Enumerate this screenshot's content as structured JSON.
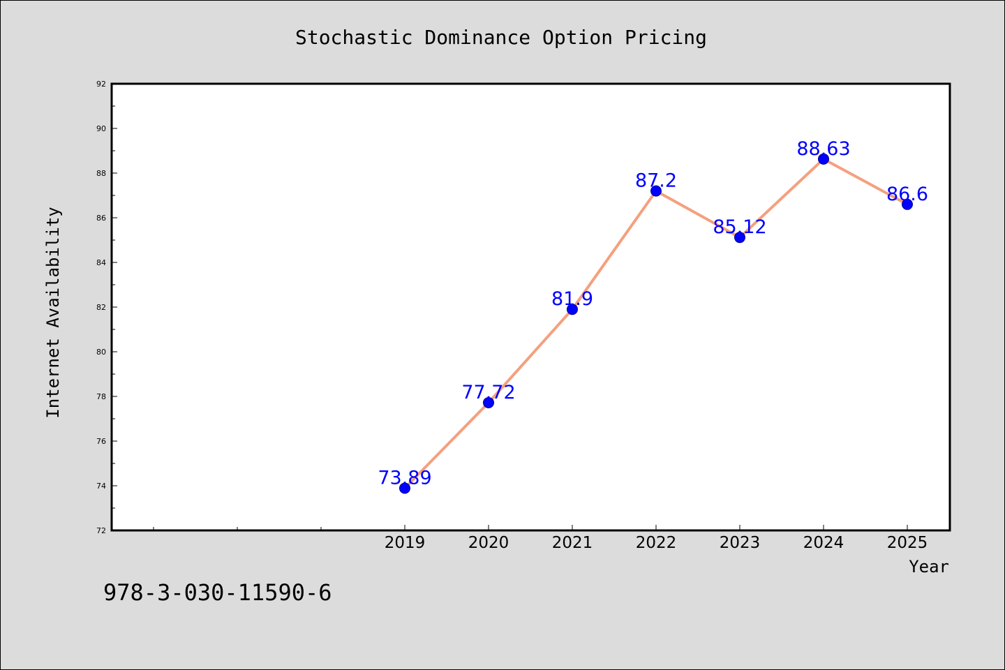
{
  "chart_data": {
    "type": "line",
    "title": "Stochastic Dominance Option Pricing",
    "xlabel": "Year",
    "ylabel": "Internet Availability",
    "categories": [
      "2019",
      "2020",
      "2021",
      "2022",
      "2023",
      "2024",
      "2025"
    ],
    "series": [
      {
        "values": [
          73.89,
          77.72,
          81.9,
          87.2,
          85.12,
          88.63,
          86.6
        ]
      }
    ],
    "data_labels": [
      "73.89",
      "77.72",
      "81.9",
      "87.2",
      "85.12",
      "88.63",
      "86.6"
    ],
    "ylim": [
      72,
      92
    ],
    "yticks": [
      "72",
      "74",
      "76",
      "78",
      "80",
      "82",
      "84",
      "86",
      "88",
      "90",
      "92"
    ],
    "grid": false,
    "colors": {
      "line": "#f4a07e",
      "marker": "#0000ff",
      "label": "#0000ff",
      "plot_bg": "#ffffff",
      "page_bg": "#dcdcdc"
    }
  },
  "footer": {
    "isbn": "978-3-030-11590-6"
  }
}
